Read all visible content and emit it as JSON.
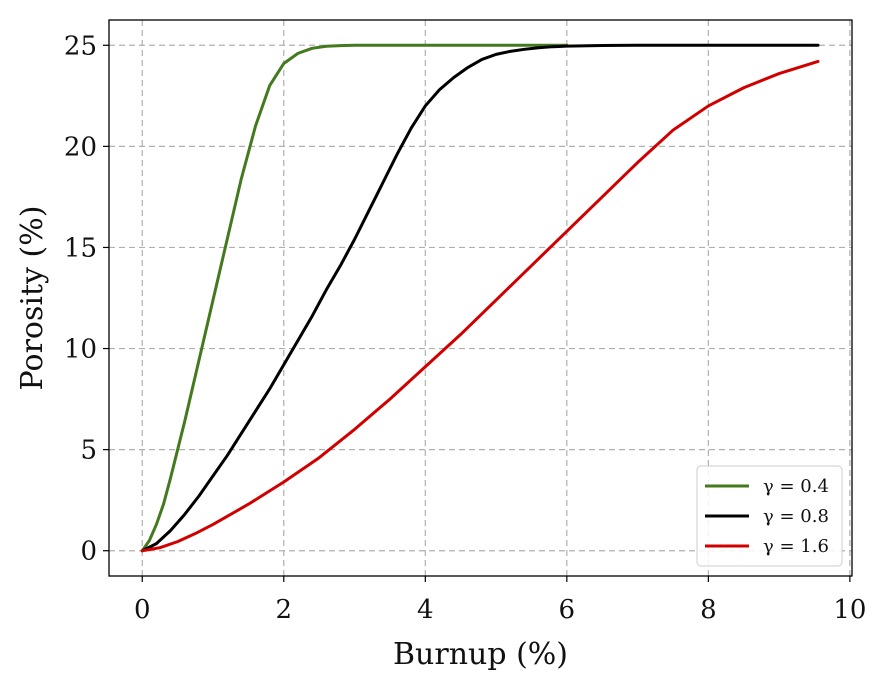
{
  "chart_data": {
    "type": "line",
    "title": "",
    "xlabel": "Burnup (%)",
    "ylabel": "Porosity (%)",
    "xlim": [
      -0.47,
      10.03
    ],
    "ylim": [
      -1.25,
      26.25
    ],
    "xticks": [
      0,
      2,
      4,
      6,
      8,
      10
    ],
    "yticks": [
      0,
      5,
      10,
      15,
      20,
      25
    ],
    "xtick_labels": [
      "0",
      "2",
      "4",
      "6",
      "8",
      "10"
    ],
    "ytick_labels": [
      "0",
      "5",
      "10",
      "15",
      "20",
      "25"
    ],
    "grid": true,
    "legend_position": "lower-right",
    "series": [
      {
        "name": "γ = 0.4",
        "color": "#447a1e",
        "x": [
          0,
          0.1,
          0.2,
          0.3,
          0.4,
          0.6,
          0.8,
          1.0,
          1.2,
          1.4,
          1.6,
          1.8,
          2.0,
          2.2,
          2.4,
          2.6,
          2.8,
          3.0,
          3.2,
          3.5,
          4.0,
          4.5,
          5.0,
          5.5,
          6.0
        ],
        "y": [
          0,
          0.5,
          1.3,
          2.3,
          3.6,
          6.4,
          9.4,
          12.4,
          15.4,
          18.4,
          21.0,
          23.0,
          24.1,
          24.6,
          24.85,
          24.95,
          24.98,
          25.0,
          25.0,
          25.0,
          25.0,
          25.0,
          25.0,
          25.0,
          25.0
        ]
      },
      {
        "name": "γ = 0.8",
        "color": "#000000",
        "x": [
          0,
          0.2,
          0.4,
          0.6,
          0.8,
          1.0,
          1.2,
          1.4,
          1.6,
          1.8,
          2.0,
          2.2,
          2.4,
          2.6,
          2.8,
          3.0,
          3.2,
          3.4,
          3.6,
          3.8,
          4.0,
          4.2,
          4.4,
          4.6,
          4.8,
          5.0,
          5.2,
          5.4,
          5.6,
          5.8,
          6.0,
          6.5,
          7.0,
          7.5,
          8.0,
          8.5,
          9.0,
          9.55
        ],
        "y": [
          0,
          0.35,
          1.0,
          1.8,
          2.7,
          3.7,
          4.7,
          5.8,
          6.9,
          8.0,
          9.2,
          10.4,
          11.6,
          12.9,
          14.1,
          15.4,
          16.8,
          18.2,
          19.6,
          20.9,
          22.0,
          22.8,
          23.4,
          23.9,
          24.3,
          24.55,
          24.7,
          24.8,
          24.88,
          24.93,
          24.96,
          24.99,
          25.0,
          25.0,
          25.0,
          25.0,
          25.0,
          25.0
        ]
      },
      {
        "name": "γ = 1.6",
        "color": "#d10000",
        "x": [
          0,
          0.25,
          0.5,
          0.75,
          1.0,
          1.5,
          2.0,
          2.5,
          3.0,
          3.5,
          4.0,
          4.5,
          5.0,
          5.5,
          6.0,
          6.5,
          7.0,
          7.5,
          8.0,
          8.5,
          9.0,
          9.55
        ],
        "y": [
          0,
          0.15,
          0.45,
          0.85,
          1.3,
          2.3,
          3.4,
          4.6,
          6.0,
          7.5,
          9.1,
          10.7,
          12.4,
          14.1,
          15.8,
          17.5,
          19.2,
          20.8,
          22.0,
          22.9,
          23.6,
          24.2
        ]
      }
    ]
  }
}
